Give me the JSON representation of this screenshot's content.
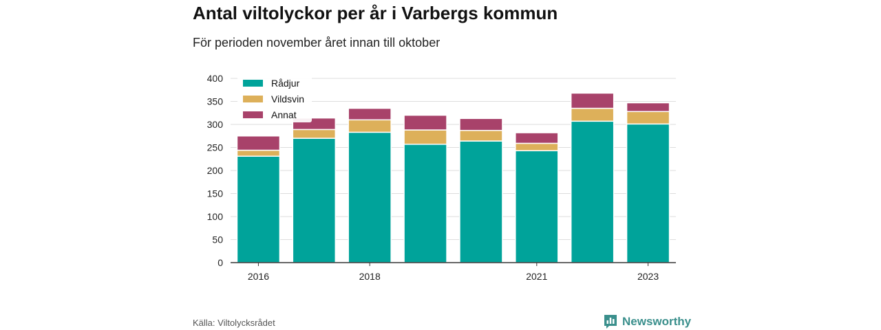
{
  "page": {
    "title": "Antal viltolyckor per år i Varbergs kommun",
    "subtitle": "För perioden november året innan till oktober",
    "source": "Källa: Viltolycksrådet",
    "brand": "Newsworthy"
  },
  "colors": {
    "Rådjur": "#00a39a",
    "Vildsvin": "#ddb05a",
    "Annat": "#a8426a",
    "grid": "#dddddd",
    "brand": "#3a8f8c"
  },
  "chart_data": {
    "type": "bar",
    "stacked": true,
    "categories": [
      "2016",
      "2017",
      "2018",
      "2019",
      "2020",
      "2021",
      "2022",
      "2023"
    ],
    "x_tick_labels": [
      "2016",
      "",
      "2018",
      "",
      "",
      "2021",
      "",
      "2023"
    ],
    "series": [
      {
        "name": "Rådjur",
        "values": [
          231,
          270,
          283,
          257,
          264,
          243,
          307,
          301
        ]
      },
      {
        "name": "Vildsvin",
        "values": [
          13,
          19,
          27,
          31,
          23,
          16,
          28,
          27
        ]
      },
      {
        "name": "Annat",
        "values": [
          31,
          25,
          25,
          32,
          26,
          23,
          33,
          19
        ]
      }
    ],
    "ylim": [
      0,
      400
    ],
    "yticks": [
      0,
      50,
      100,
      150,
      200,
      250,
      300,
      350,
      400
    ],
    "grid": true,
    "legend_position": "top-left"
  }
}
